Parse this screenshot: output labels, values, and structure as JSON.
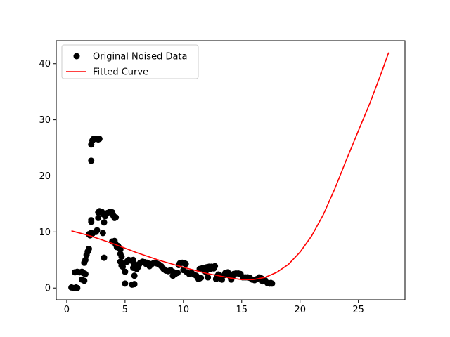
{
  "chart_data": {
    "type": "scatter",
    "title": "",
    "xlabel": "",
    "ylabel": "",
    "xlim": [
      -0.9,
      29.0
    ],
    "ylim": [
      -2.1,
      44.1
    ],
    "xticks": [
      0,
      5,
      10,
      15,
      20,
      25
    ],
    "yticks": [
      0,
      10,
      20,
      30,
      40
    ],
    "grid": false,
    "legend_position": "top-left",
    "series": [
      {
        "name": "Original Noised Data",
        "kind": "scatter",
        "color": "#000000",
        "marker": "circle",
        "points": [
          [
            0.4,
            0.1
          ],
          [
            0.6,
            0.0
          ],
          [
            0.8,
            0.1
          ],
          [
            0.9,
            0.0
          ],
          [
            0.7,
            2.8
          ],
          [
            0.9,
            2.9
          ],
          [
            1.1,
            2.8
          ],
          [
            1.3,
            2.9
          ],
          [
            1.4,
            2.7
          ],
          [
            1.5,
            2.6
          ],
          [
            1.3,
            1.5
          ],
          [
            1.5,
            1.3
          ],
          [
            1.6,
            2.5
          ],
          [
            1.5,
            4.5
          ],
          [
            1.6,
            5.0
          ],
          [
            1.7,
            5.9
          ],
          [
            1.8,
            6.5
          ],
          [
            1.9,
            7.0
          ],
          [
            1.9,
            9.6
          ],
          [
            2.0,
            9.4
          ],
          [
            2.1,
            9.8
          ],
          [
            2.2,
            9.7
          ],
          [
            2.1,
            11.8
          ],
          [
            2.1,
            12.1
          ],
          [
            2.1,
            22.7
          ],
          [
            2.1,
            25.6
          ],
          [
            2.2,
            26.3
          ],
          [
            2.3,
            26.6
          ],
          [
            2.5,
            26.6
          ],
          [
            2.7,
            26.5
          ],
          [
            2.8,
            26.6
          ],
          [
            2.5,
            10.0
          ],
          [
            2.6,
            10.3
          ],
          [
            2.7,
            12.5
          ],
          [
            2.7,
            13.5
          ],
          [
            2.8,
            13.7
          ],
          [
            3.0,
            13.6
          ],
          [
            3.1,
            13.2
          ],
          [
            3.2,
            11.7
          ],
          [
            3.3,
            12.8
          ],
          [
            3.5,
            13.4
          ],
          [
            3.7,
            13.6
          ],
          [
            3.9,
            13.5
          ],
          [
            4.0,
            12.9
          ],
          [
            4.1,
            12.5
          ],
          [
            4.2,
            12.6
          ],
          [
            3.1,
            9.8
          ],
          [
            3.2,
            5.4
          ],
          [
            3.9,
            8.3
          ],
          [
            4.1,
            8.4
          ],
          [
            4.2,
            7.8
          ],
          [
            4.4,
            7.5
          ],
          [
            4.5,
            7.2
          ],
          [
            4.6,
            6.9
          ],
          [
            4.6,
            6.1
          ],
          [
            4.7,
            5.6
          ],
          [
            4.6,
            4.7
          ],
          [
            4.7,
            4.0
          ],
          [
            4.8,
            3.8
          ],
          [
            5.0,
            2.9
          ],
          [
            5.0,
            0.8
          ],
          [
            5.1,
            4.6
          ],
          [
            5.3,
            5.0
          ],
          [
            5.5,
            4.9
          ],
          [
            5.6,
            4.9
          ],
          [
            5.7,
            5.0
          ],
          [
            5.8,
            4.3
          ],
          [
            5.7,
            3.6
          ],
          [
            5.8,
            2.2
          ],
          [
            5.6,
            0.6
          ],
          [
            5.8,
            0.7
          ],
          [
            6.0,
            3.4
          ],
          [
            6.1,
            3.7
          ],
          [
            6.2,
            4.2
          ],
          [
            6.3,
            4.5
          ],
          [
            6.5,
            4.7
          ],
          [
            6.7,
            4.6
          ],
          [
            6.9,
            4.5
          ],
          [
            7.1,
            3.9
          ],
          [
            7.3,
            4.3
          ],
          [
            7.5,
            4.5
          ],
          [
            7.7,
            4.4
          ],
          [
            7.9,
            4.2
          ],
          [
            8.1,
            3.9
          ],
          [
            8.3,
            3.4
          ],
          [
            8.5,
            3.1
          ],
          [
            8.7,
            3.0
          ],
          [
            8.9,
            3.2
          ],
          [
            9.1,
            2.9
          ],
          [
            9.3,
            2.5
          ],
          [
            9.1,
            2.2
          ],
          [
            9.5,
            2.7
          ],
          [
            9.7,
            4.4
          ],
          [
            9.9,
            4.5
          ],
          [
            10.1,
            4.4
          ],
          [
            10.2,
            4.3
          ],
          [
            10.0,
            3.2
          ],
          [
            10.3,
            2.8
          ],
          [
            10.5,
            2.5
          ],
          [
            10.7,
            2.7
          ],
          [
            10.9,
            2.4
          ],
          [
            11.1,
            2.2
          ],
          [
            11.3,
            1.6
          ],
          [
            11.4,
            3.4
          ],
          [
            11.6,
            3.5
          ],
          [
            11.8,
            3.6
          ],
          [
            11.9,
            2.9
          ],
          [
            12.0,
            3.7
          ],
          [
            12.1,
            1.9
          ],
          [
            12.2,
            3.8
          ],
          [
            12.3,
            3.4
          ],
          [
            12.4,
            3.8
          ],
          [
            12.6,
            3.5
          ],
          [
            12.8,
            1.6
          ],
          [
            12.9,
            2.1
          ],
          [
            13.0,
            2.4
          ],
          [
            13.1,
            1.9
          ],
          [
            13.3,
            1.5
          ],
          [
            13.5,
            2.3
          ],
          [
            13.6,
            2.7
          ],
          [
            13.8,
            2.8
          ],
          [
            13.9,
            2.4
          ],
          [
            14.0,
            2.1
          ],
          [
            14.1,
            1.5
          ],
          [
            14.3,
            2.5
          ],
          [
            14.5,
            2.6
          ],
          [
            14.7,
            2.6
          ],
          [
            14.9,
            2.5
          ],
          [
            15.1,
            1.9
          ],
          [
            15.3,
            1.9
          ],
          [
            15.5,
            1.9
          ],
          [
            15.7,
            1.8
          ],
          [
            15.9,
            1.5
          ],
          [
            16.1,
            1.4
          ],
          [
            16.3,
            1.6
          ],
          [
            16.5,
            1.9
          ],
          [
            16.7,
            1.7
          ],
          [
            16.8,
            1.2
          ],
          [
            17.0,
            1.4
          ],
          [
            17.2,
            0.9
          ],
          [
            17.4,
            0.8
          ],
          [
            17.5,
            0.9
          ],
          [
            17.6,
            0.8
          ],
          [
            4.3,
            7.3
          ],
          [
            5.2,
            4.8
          ],
          [
            6.8,
            4.3
          ],
          [
            9.6,
            4.1
          ],
          [
            11.5,
            1.8
          ],
          [
            12.7,
            3.9
          ],
          [
            14.2,
            2.0
          ]
        ]
      },
      {
        "name": "Fitted Curve",
        "kind": "line",
        "color": "#ff0000",
        "x": [
          0.4,
          2,
          4,
          6,
          8,
          10,
          12,
          14,
          15,
          16,
          17,
          18,
          19,
          20,
          21,
          22,
          23,
          24,
          25,
          26,
          27,
          27.6
        ],
        "y": [
          10.2,
          9.3,
          7.9,
          6.3,
          4.9,
          3.7,
          2.6,
          1.8,
          1.5,
          1.5,
          1.9,
          2.8,
          4.2,
          6.4,
          9.3,
          13.1,
          17.8,
          23.0,
          28.0,
          33.0,
          38.5,
          42.0
        ]
      }
    ]
  }
}
